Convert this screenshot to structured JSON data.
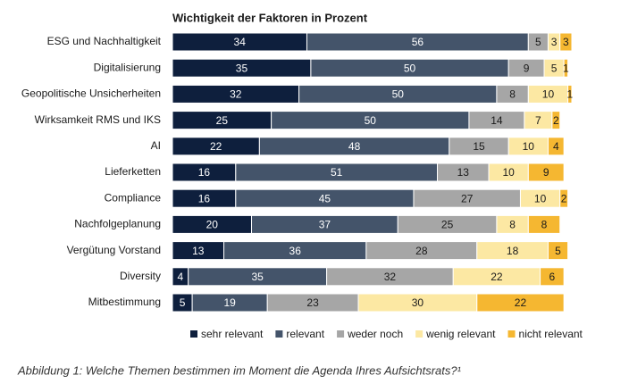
{
  "chart_data": {
    "type": "stacked-bar",
    "orientation": "horizontal",
    "title": "Wichtigkeit der Faktoren in Prozent",
    "caption": "Abbildung 1: Welche Themen bestimmen im Moment die Agenda Ihres Aufsichtsrats?¹",
    "categories": [
      "ESG und Nachhaltigkeit",
      "Digitalisierung",
      "Geopolitische Unsicherheiten",
      "Wirksamkeit RMS und IKS",
      "AI",
      "Lieferketten",
      "Compliance",
      "Nachfolgeplanung",
      "Vergütung Vorstand",
      "Diversity",
      "Mitbestimmung"
    ],
    "series": [
      {
        "name": "sehr relevant",
        "color": "#0e1f3d",
        "values": [
          34,
          35,
          32,
          25,
          22,
          16,
          16,
          20,
          13,
          4,
          5
        ]
      },
      {
        "name": "relevant",
        "color": "#44546a",
        "values": [
          56,
          50,
          50,
          50,
          48,
          51,
          45,
          37,
          36,
          35,
          19
        ]
      },
      {
        "name": "weder noch",
        "color": "#a6a6a6",
        "values": [
          5,
          9,
          8,
          14,
          15,
          13,
          27,
          25,
          28,
          32,
          23
        ]
      },
      {
        "name": "wenig relevant",
        "color": "#fce8a3",
        "values": [
          3,
          5,
          10,
          7,
          10,
          10,
          10,
          8,
          18,
          22,
          30
        ]
      },
      {
        "name": "nicht relevant",
        "color": "#f5b731",
        "values": [
          3,
          1,
          1,
          2,
          4,
          9,
          2,
          8,
          5,
          6,
          22
        ]
      }
    ],
    "legend": "bottom"
  }
}
